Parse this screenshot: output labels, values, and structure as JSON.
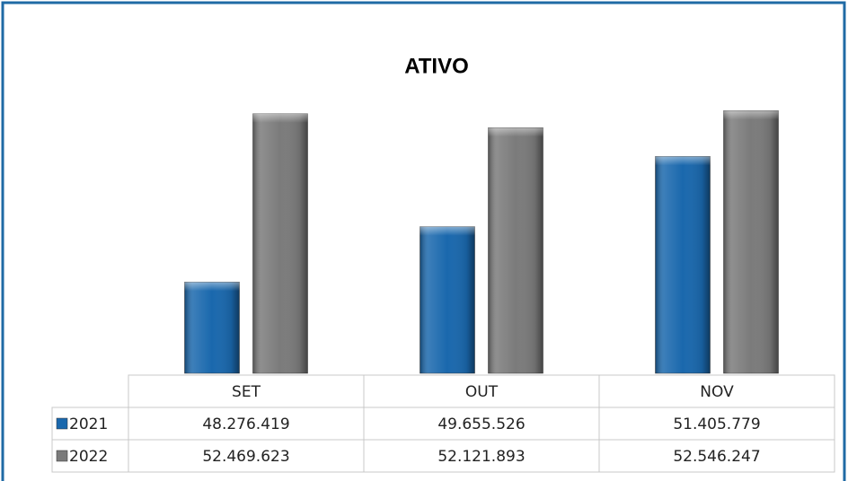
{
  "chart_data": {
    "type": "bar",
    "title": "ATIVO",
    "categories": [
      "SET",
      "OUT",
      "NOV"
    ],
    "series": [
      {
        "name": "2021",
        "color": "#1a68ad",
        "values": [
          48276419,
          49655526,
          51405779
        ],
        "value_labels": [
          "48.276.419",
          "49.655.526",
          "51.405.779"
        ]
      },
      {
        "name": "2022",
        "color": "#7b7b7b",
        "values": [
          52469623,
          52121893,
          52546247
        ],
        "value_labels": [
          "52.469.623",
          "52.121.893",
          "52.546.247"
        ]
      }
    ],
    "ylim": [
      46000000,
      53000000
    ]
  }
}
